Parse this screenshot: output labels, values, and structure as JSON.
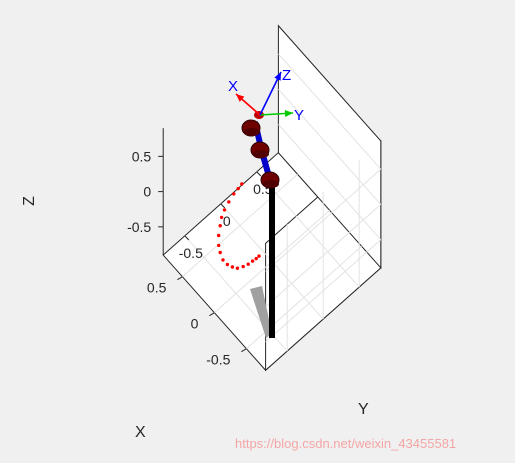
{
  "chart_data": {
    "type": "scatter",
    "projection": "3d",
    "grid": true,
    "title": "",
    "xlabel": "X",
    "ylabel": "Y",
    "zlabel": "Z",
    "xticks": [
      "-0.5",
      "0",
      "0.5"
    ],
    "yticks": [
      "-0.5",
      "0",
      "0.5"
    ],
    "zticks": [
      "-0.5",
      "0",
      "0.5"
    ],
    "xlim": [
      -0.8,
      0.8
    ],
    "ylim": [
      -0.8,
      0.8
    ],
    "zlim": [
      -0.9,
      0.9
    ],
    "series": [
      {
        "color": "#ff0000",
        "marker": "dot",
        "points": [
          [
            0.0,
            -0.42,
            0.58
          ],
          [
            0.0,
            -0.47,
            0.56
          ],
          [
            0.0,
            -0.53,
            0.54
          ],
          [
            0.0,
            -0.6,
            0.49
          ],
          [
            0.0,
            -0.66,
            0.43
          ],
          [
            0.0,
            -0.7,
            0.36
          ],
          [
            0.0,
            -0.72,
            0.26
          ],
          [
            0.0,
            -0.74,
            0.14
          ],
          [
            0.0,
            -0.74,
            0.0
          ],
          [
            0.0,
            -0.72,
            -0.12
          ],
          [
            0.0,
            -0.68,
            -0.26
          ],
          [
            0.0,
            -0.62,
            -0.38
          ],
          [
            0.0,
            -0.55,
            -0.48
          ],
          [
            0.0,
            -0.48,
            -0.56
          ],
          [
            0.0,
            -0.4,
            -0.61
          ],
          [
            0.0,
            -0.33,
            -0.64
          ],
          [
            0.0,
            -0.27,
            -0.65
          ],
          [
            0.0,
            -0.22,
            -0.66
          ],
          [
            0.0,
            -0.18,
            -0.66
          ]
        ]
      }
    ],
    "end_effector_frame": {
      "axis_labels": [
        "X",
        "Y",
        "Z"
      ],
      "axis_colors": [
        "#ff0000",
        "#00cc00",
        "#0000ff"
      ]
    },
    "watermark": "https://blog.csdn.net/weixin_43455581"
  }
}
